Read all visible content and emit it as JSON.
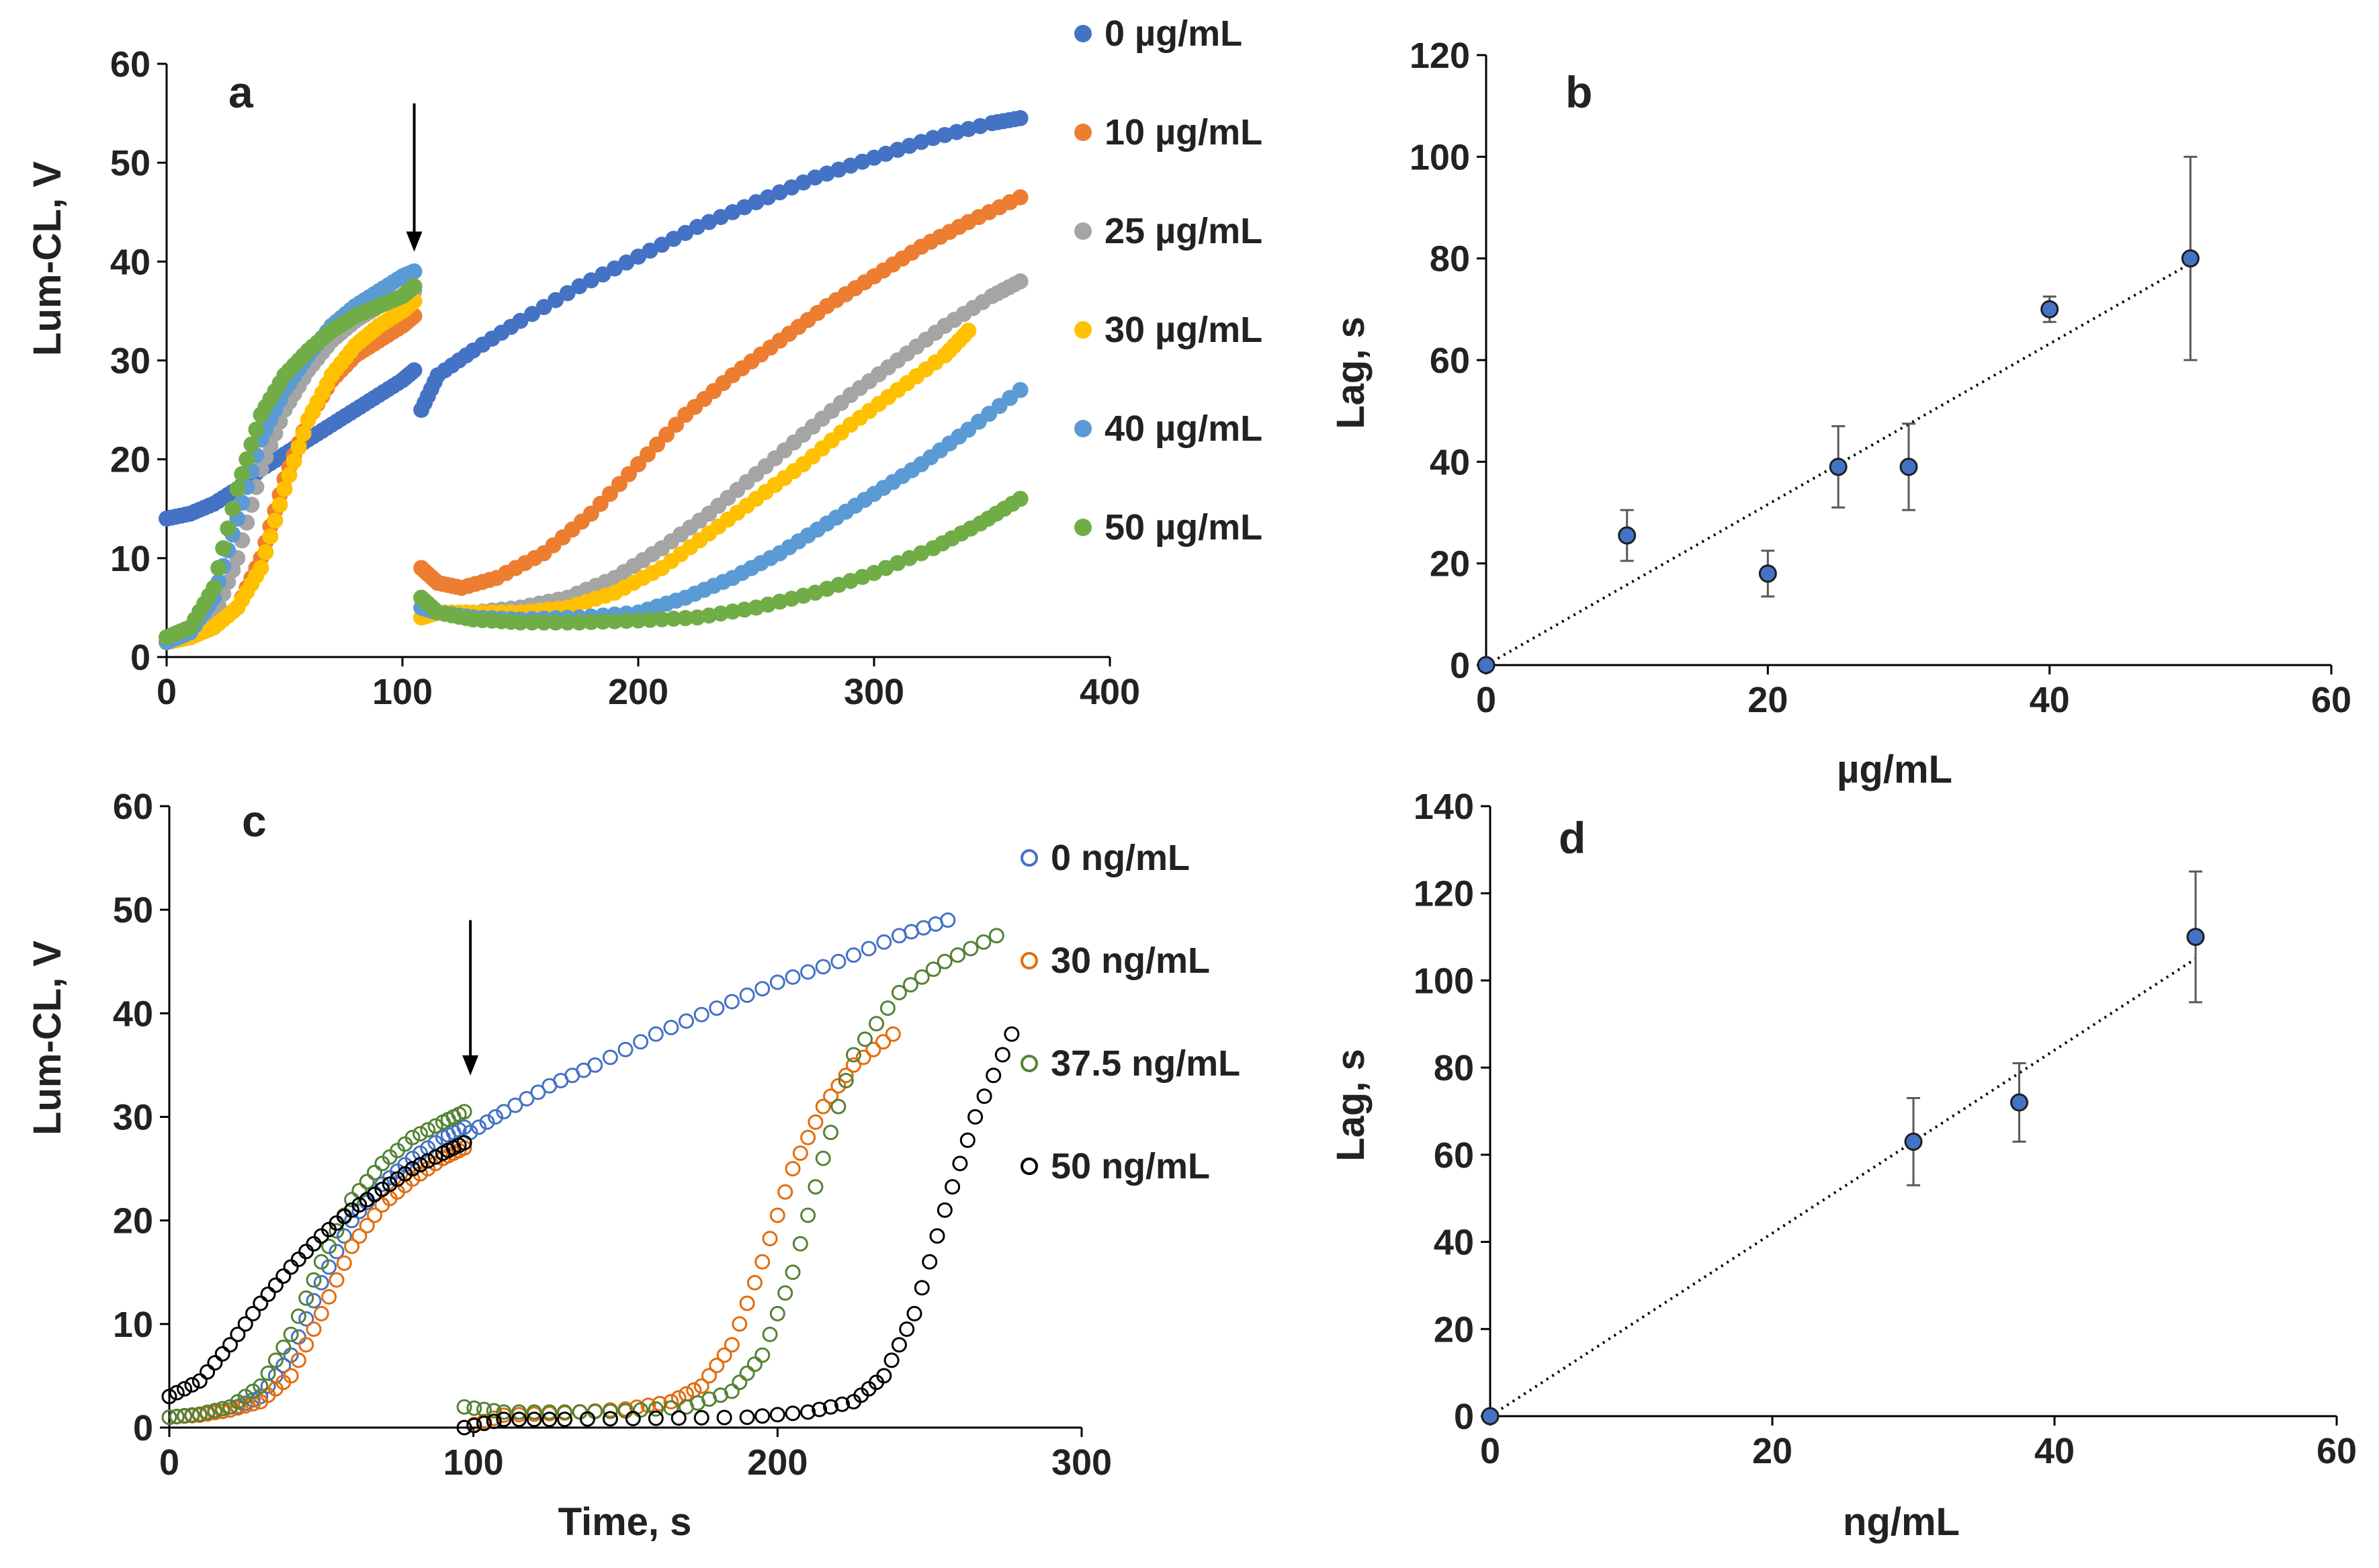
{
  "chart_data": [
    {
      "panel": "a",
      "type": "scatter",
      "xlabel": "",
      "ylabel": "Lum-CL, V",
      "xlim": [
        0,
        400
      ],
      "ylim": [
        0,
        60
      ],
      "xticks": [
        "0",
        "100",
        "200",
        "300",
        "400"
      ],
      "yticks": [
        "0",
        "10",
        "20",
        "30",
        "40",
        "50",
        "60"
      ],
      "legend_position": "right",
      "annotation": "arrow at t ≈ 105 s (addition)",
      "arrow_x": 105,
      "arrow_y_from": 56,
      "arrow_y_to": 41,
      "marker": "filled",
      "series": [
        {
          "name": "0 µg/mL",
          "color": "#4472c4",
          "phase1": {
            "x": [
              0,
              10,
              20,
              30,
              40,
              50,
              60,
              70,
              80,
              90,
              100,
              105
            ],
            "y": [
              14,
              14.5,
              15.5,
              17,
              19,
              20.5,
              22,
              23.5,
              25,
              26.5,
              28,
              29
            ]
          },
          "phase2": {
            "x": [
              108,
              115,
              130,
              150,
              175,
              200,
              225,
              250,
              275,
              300,
              325,
              350,
              362
            ],
            "y": [
              25,
              28.5,
              31,
              34,
              37.5,
              40.5,
              43.5,
              46,
              48.5,
              50.5,
              52.5,
              54,
              54.5
            ]
          }
        },
        {
          "name": "10 µg/mL",
          "color": "#ed7d31",
          "phase1": {
            "x": [
              0,
              10,
              20,
              30,
              40,
              50,
              60,
              70,
              80,
              90,
              100,
              105
            ],
            "y": [
              1.5,
              2,
              3,
              5,
              10,
              18,
              24,
              28,
              30.5,
              32,
              33.5,
              34.5
            ]
          },
          "phase2": {
            "x": [
              108,
              115,
              125,
              140,
              160,
              180,
              200,
              220,
              240,
              260,
              280,
              300,
              320,
              340,
              362
            ],
            "y": [
              9,
              7.5,
              7,
              8,
              10.5,
              14.5,
              19.5,
              24.5,
              28.5,
              32,
              35.5,
              38.5,
              41.5,
              44,
              46.5
            ]
          }
        },
        {
          "name": "25 µg/mL",
          "color": "#a5a5a5",
          "phase1": {
            "x": [
              0,
              10,
              20,
              30,
              40,
              50,
              60,
              70,
              80,
              90,
              100,
              105
            ],
            "y": [
              1.5,
              2,
              4,
              10,
              19,
              25,
              29,
              32,
              34,
              35.5,
              36.5,
              37
            ]
          },
          "phase2": {
            "x": [
              108,
              115,
              130,
              150,
              170,
              190,
              210,
              230,
              250,
              270,
              290,
              310,
              330,
              350,
              362
            ],
            "y": [
              4,
              4.5,
              4.5,
              5,
              6,
              8,
              11,
              14.5,
              18.5,
              22.5,
              26.5,
              30,
              33.5,
              36.5,
              38
            ]
          }
        },
        {
          "name": "30 µg/mL",
          "color": "#ffc000",
          "phase1": {
            "x": [
              0,
              10,
              20,
              30,
              40,
              50,
              60,
              70,
              80,
              90,
              100,
              105
            ],
            "y": [
              1.5,
              2,
              3,
              5,
              9,
              17,
              24,
              28.5,
              31.5,
              33.5,
              35,
              36
            ]
          },
          "phase2": {
            "x": [
              108,
              115,
              130,
              150,
              170,
              190,
              210,
              230,
              250,
              270,
              290,
              310,
              330,
              340
            ],
            "y": [
              4,
              4.5,
              4.5,
              4.5,
              5,
              6.5,
              9,
              12.5,
              16,
              19.5,
              23.5,
              27,
              30.5,
              33
            ]
          }
        },
        {
          "name": "40 µg/mL",
          "color": "#5b9bd5",
          "phase1": {
            "x": [
              0,
              10,
              20,
              30,
              40,
              50,
              60,
              70,
              80,
              90,
              100,
              105
            ],
            "y": [
              1.5,
              2.5,
              6,
              14,
              22,
              27,
              30.5,
              33.5,
              35.5,
              37,
              38.5,
              39
            ]
          },
          "phase2": {
            "x": [
              108,
              115,
              130,
              150,
              175,
              200,
              220,
              240,
              260,
              280,
              300,
              320,
              340,
              362
            ],
            "y": [
              5,
              4.5,
              4,
              3.8,
              4,
              4.5,
              6,
              8,
              10.5,
              13.5,
              16.5,
              19.5,
              23,
              27
            ]
          }
        },
        {
          "name": "50 µg/mL",
          "color": "#70ad47",
          "phase1": {
            "x": [
              0,
              10,
              20,
              30,
              40,
              50,
              60,
              70,
              80,
              90,
              100,
              105
            ],
            "y": [
              2,
              3,
              7,
              17,
              24.5,
              28.5,
              31,
              33,
              34.5,
              35.5,
              36.5,
              37.5
            ]
          },
          "phase2": {
            "x": [
              108,
              115,
              130,
              150,
              175,
              200,
              225,
              250,
              275,
              300,
              325,
              345,
              362
            ],
            "y": [
              6,
              4.5,
              3.8,
              3.5,
              3.5,
              3.7,
              4,
              5,
              6.5,
              8.5,
              11,
              13.5,
              16
            ]
          }
        }
      ]
    },
    {
      "panel": "b",
      "type": "scatter",
      "xlabel": "µg/mL",
      "ylabel": "Lag, s",
      "xlim": [
        0,
        60
      ],
      "ylim": [
        0,
        120
      ],
      "xticks": [
        "0",
        "20",
        "40",
        "60"
      ],
      "yticks": [
        "0",
        "20",
        "40",
        "60",
        "80",
        "100",
        "120"
      ],
      "trendline": {
        "x": [
          0,
          50
        ],
        "y": [
          0,
          79
        ]
      },
      "points": [
        {
          "x": 0,
          "y": 0,
          "err": 0
        },
        {
          "x": 10,
          "y": 25.5,
          "err": 5
        },
        {
          "x": 20,
          "y": 18,
          "err": 4.5
        },
        {
          "x": 25,
          "y": 39,
          "err": 8
        },
        {
          "x": 30,
          "y": 39,
          "err": 8.5
        },
        {
          "x": 40,
          "y": 70,
          "err": 2.5
        },
        {
          "x": 50,
          "y": 80,
          "err": 20
        }
      ],
      "marker_color": "#4472c4"
    },
    {
      "panel": "c",
      "type": "scatter",
      "xlabel": "Time, s",
      "ylabel": "Lum-CL, V",
      "xlim": [
        0,
        300
      ],
      "ylim": [
        0,
        60
      ],
      "xticks": [
        "0",
        "100",
        "200",
        "300"
      ],
      "yticks": [
        "0",
        "10",
        "20",
        "30",
        "40",
        "50",
        "60"
      ],
      "legend_position": "right",
      "annotation": "arrow at t ≈ 99 s (addition)",
      "arrow_x": 99,
      "arrow_y_from": 49,
      "arrow_y_to": 34,
      "marker": "open",
      "series": [
        {
          "name": "0 ng/mL",
          "color": "#4472c4",
          "phase1": {
            "x": [
              0,
              10,
              20,
              30,
              40,
              50,
              60,
              70,
              80,
              90,
              97
            ],
            "y": [
              1,
              1.2,
              1.7,
              3,
              7,
              14,
              20,
              23.5,
              26,
              28,
              29
            ]
          },
          "phase2": {
            "x": [
              99,
              110,
              125,
              140,
              160,
              180,
              200,
              220,
              240,
              256
            ],
            "y": [
              28.5,
              30.5,
              33,
              35,
              38,
              40.5,
              43,
              45,
              47.5,
              49
            ]
          }
        },
        {
          "name": "30 ng/mL",
          "color": "#e46c0a",
          "phase1": {
            "x": [
              0,
              10,
              20,
              30,
              40,
              50,
              60,
              70,
              80,
              90,
              97
            ],
            "y": [
              1,
              1.2,
              1.7,
              2.5,
              5,
              11,
              17.5,
              21.5,
              24,
              26,
              27
            ]
          },
          "phase2": {
            "x": [
              97,
              110,
              130,
              150,
              165,
              175,
              185,
              195,
              205,
              215,
              225,
              238
            ],
            "y": [
              0,
              1.2,
              1.4,
              1.8,
              2.5,
              4,
              8,
              16,
              25,
              31,
              35,
              38
            ]
          }
        },
        {
          "name": "37.5 ng/mL",
          "color": "#548235",
          "phase1": {
            "x": [
              0,
              10,
              20,
              30,
              40,
              50,
              60,
              70,
              80,
              90,
              97
            ],
            "y": [
              1,
              1.3,
              2,
              4,
              9,
              16,
              22,
              25.5,
              28,
              29.5,
              30.5
            ]
          },
          "phase2": {
            "x": [
              97,
              110,
              130,
              150,
              170,
              185,
              195,
              205,
              215,
              225,
              240,
              255,
              272
            ],
            "y": [
              2,
              1.5,
              1.5,
              1.6,
              2,
              3.5,
              7,
              15,
              26,
              36,
              42,
              45,
              47.5
            ]
          }
        },
        {
          "name": "50 ng/mL",
          "color": "#000000",
          "phase1": {
            "x": [
              0,
              10,
              20,
              30,
              40,
              50,
              60,
              70,
              80,
              90,
              97
            ],
            "y": [
              3,
              4.5,
              8,
              12,
              15.5,
              18.5,
              21,
              23,
              25,
              26.5,
              27.5
            ]
          },
          "phase2": {
            "x": [
              97,
              110,
              130,
              160,
              190,
              210,
              225,
              235,
              245,
              255,
              265,
              277
            ],
            "y": [
              0,
              0.8,
              0.8,
              0.9,
              1,
              1.5,
              2.5,
              5,
              11,
              21,
              30,
              38
            ]
          }
        }
      ]
    },
    {
      "panel": "d",
      "type": "scatter",
      "xlabel": "ng/mL",
      "ylabel": "Lag, s",
      "xlim": [
        0,
        60
      ],
      "ylim": [
        0,
        140
      ],
      "xticks": [
        "0",
        "20",
        "40",
        "60"
      ],
      "yticks": [
        "0",
        "20",
        "40",
        "60",
        "80",
        "100",
        "120",
        "140"
      ],
      "trendline": {
        "x": [
          0,
          50
        ],
        "y": [
          0,
          105
        ]
      },
      "points": [
        {
          "x": 0,
          "y": 0,
          "err": 0
        },
        {
          "x": 30,
          "y": 63,
          "err": 10
        },
        {
          "x": 37.5,
          "y": 72,
          "err": 9
        },
        {
          "x": 50,
          "y": 110,
          "err": 15
        }
      ],
      "marker_color": "#4472c4"
    }
  ]
}
